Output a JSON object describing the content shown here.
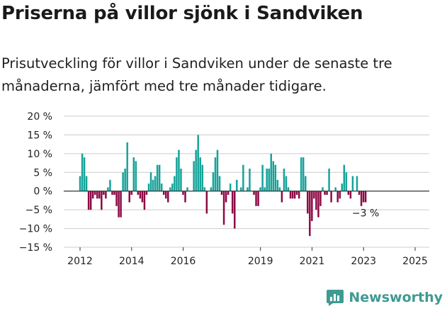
{
  "title": "Priserna på villor sjönk i Sandviken",
  "subtitle": "Prisutveckling för villor i Sandviken under de senaste tre månaderna, jämfört med tre månader tidigare.",
  "brand": {
    "name": "Newsworthy",
    "icon": "bar-chart-logo-icon",
    "color": "#3f9a92"
  },
  "colors": {
    "positive": "#14a39a",
    "negative": "#8c0a45",
    "axis": "#333333",
    "grid": "#cccccc"
  },
  "chart_data": {
    "type": "bar",
    "ylim": [
      -15,
      20
    ],
    "y_ticks": [
      20,
      15,
      10,
      5,
      0,
      -5,
      -10,
      -15
    ],
    "y_tick_labels": [
      "20 %",
      "15 %",
      "10 %",
      "5 %",
      "0 %",
      "−5 %",
      "−10 %",
      "−15 %"
    ],
    "x_ticks": [
      2012,
      2014,
      2016,
      2019,
      2021,
      2023,
      2025
    ],
    "x_tick_labels": [
      "2012",
      "2014",
      "2016",
      "2019",
      "2021",
      "2023",
      "2025"
    ],
    "grid": "horizontal",
    "x_start": 2012.0,
    "x_step": 0.0833,
    "values": [
      4,
      10,
      9,
      4,
      -5,
      -5,
      -2,
      -1,
      -2,
      -2,
      -5,
      -1,
      -2,
      1,
      3,
      -1,
      -1,
      -4,
      -7,
      -7,
      5,
      6,
      13,
      -3,
      -1,
      9,
      8,
      -1,
      -2,
      -3,
      -5,
      -1,
      2,
      5,
      3,
      4,
      7,
      7,
      2,
      -1,
      -2,
      -3,
      1,
      2,
      4,
      9,
      11,
      6,
      -1,
      -3,
      1,
      0,
      0,
      8,
      11,
      15,
      9,
      7,
      1,
      -6,
      0,
      1,
      5,
      9,
      11,
      4,
      -1,
      -9,
      -3,
      -1,
      2,
      -6,
      -10,
      3,
      0,
      1,
      7,
      0,
      1,
      6,
      0,
      -1,
      -4,
      -4,
      1,
      7,
      1,
      6,
      6,
      10,
      8,
      7,
      3,
      1,
      -3,
      6,
      4,
      1,
      -2,
      -2,
      -2,
      -1,
      -2,
      9,
      9,
      4,
      -6,
      -12,
      -8,
      -2,
      -5,
      -7,
      -4,
      1,
      -1,
      -1,
      6,
      -3,
      0,
      1,
      -3,
      -2,
      2,
      7,
      5,
      -1,
      -2,
      4,
      0,
      4,
      -1,
      -4,
      -3,
      -3
    ],
    "last_label": "−3 %"
  }
}
